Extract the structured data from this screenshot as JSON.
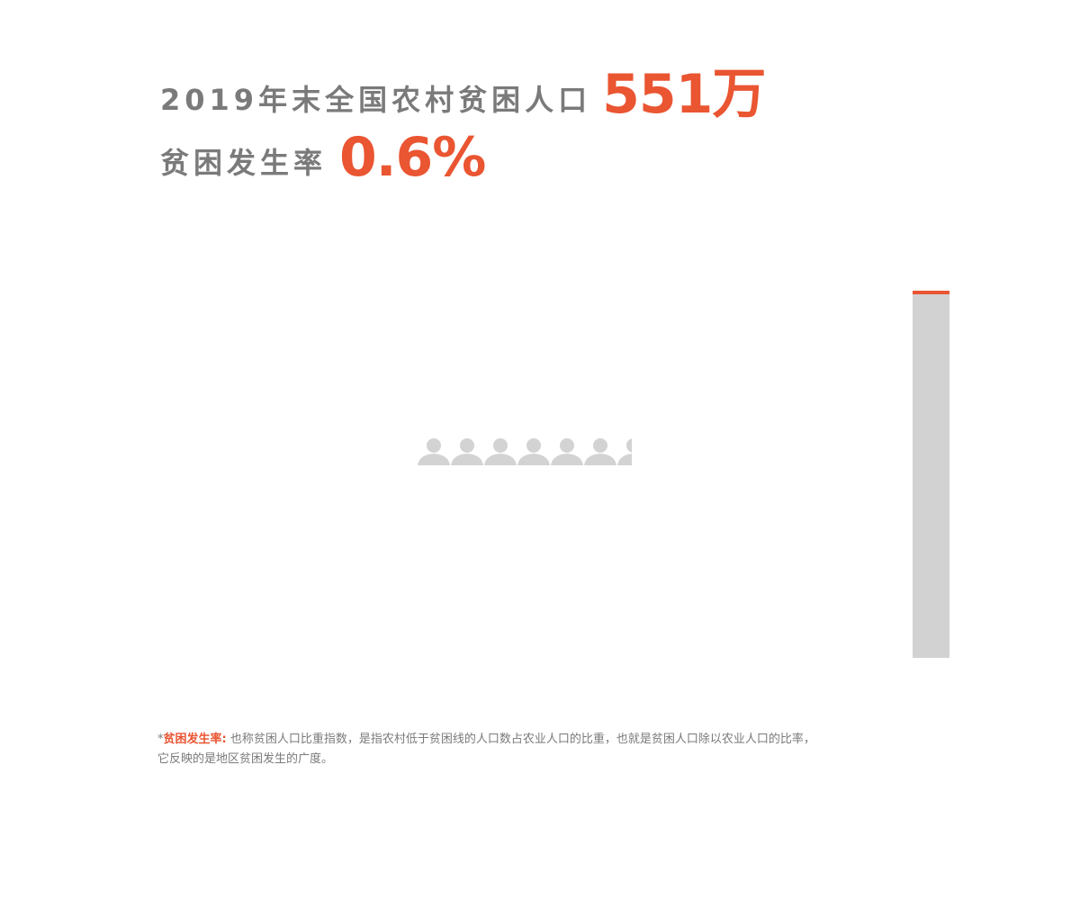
{
  "header": {
    "line1": "2019年末全国农村贫困人口",
    "line1_value": "551万",
    "line2": "贫困发生率",
    "line2_value": "0.6%"
  },
  "footnote": {
    "marker": "*",
    "term": "贫困发生率:",
    "lines": [
      "也称贫困人口比重指数，是指农村低于贫困线的人口数占农业人口的比重，也就是贫困人口除以农业人口的比率，",
      "它反映的是地区贫困发生的广度。"
    ]
  }
}
